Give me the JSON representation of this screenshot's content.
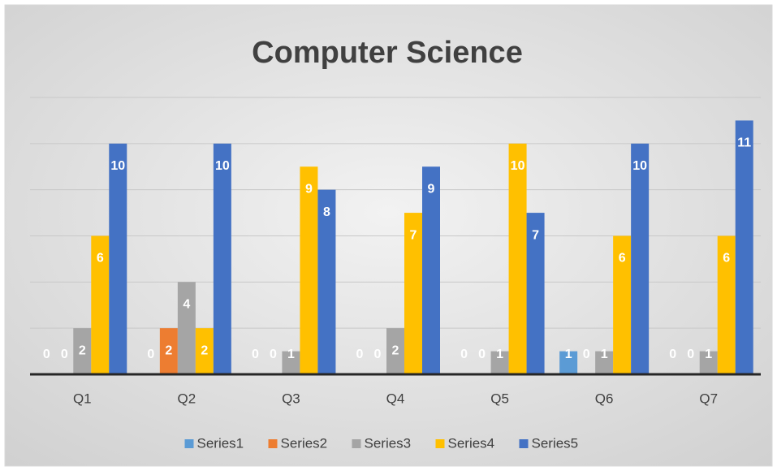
{
  "chart_data": {
    "type": "bar",
    "title": "Computer Science",
    "categories": [
      "Q1",
      "Q2",
      "Q3",
      "Q4",
      "Q5",
      "Q6",
      "Q7"
    ],
    "series": [
      {
        "name": "Series1",
        "color": "#5b9bd5",
        "values": [
          0,
          0,
          0,
          0,
          0,
          1,
          0
        ]
      },
      {
        "name": "Series2",
        "color": "#ed7d31",
        "values": [
          0,
          2,
          0,
          0,
          0,
          0,
          0
        ]
      },
      {
        "name": "Series3",
        "color": "#a5a5a5",
        "values": [
          2,
          4,
          1,
          2,
          1,
          1,
          1
        ]
      },
      {
        "name": "Series4",
        "color": "#ffc000",
        "values": [
          6,
          2,
          9,
          7,
          10,
          6,
          6
        ]
      },
      {
        "name": "Series5",
        "color": "#4472c4",
        "values": [
          10,
          10,
          8,
          9,
          7,
          10,
          11
        ]
      }
    ],
    "ylim": [
      0,
      12
    ],
    "yticks": [
      0,
      2,
      4,
      6,
      8,
      10,
      12
    ],
    "grid": true,
    "legend": "bottom"
  }
}
